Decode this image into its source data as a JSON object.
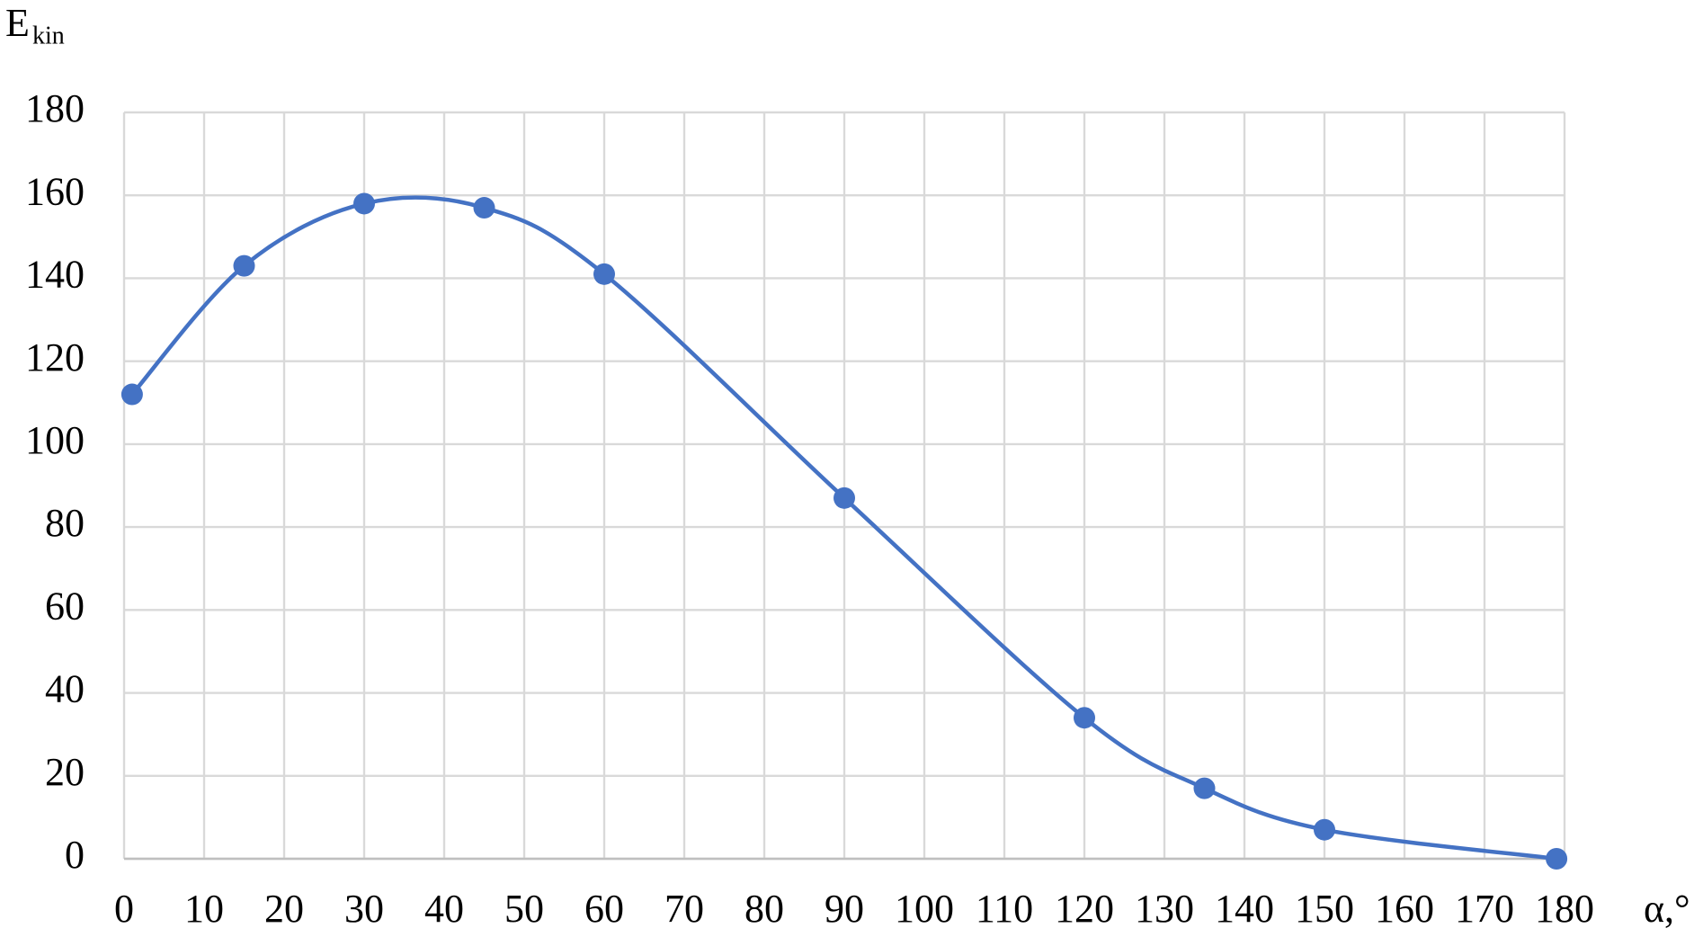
{
  "chart_data": {
    "type": "line",
    "ylabel": "E",
    "ylabel_sub": "kin",
    "xlabel": "α,°",
    "x": [
      1,
      15,
      30,
      45,
      60,
      90,
      120,
      135,
      150,
      179
    ],
    "series": [
      {
        "color": "#4472c4",
        "values": [
          112,
          143,
          158,
          157,
          141,
          87,
          34,
          17,
          7,
          0
        ]
      }
    ],
    "xlim": [
      0,
      180
    ],
    "xticks": [
      0,
      10,
      20,
      30,
      40,
      50,
      60,
      70,
      80,
      90,
      100,
      110,
      120,
      130,
      140,
      150,
      160,
      170,
      180
    ],
    "ylim": [
      0,
      180
    ],
    "yticks": [
      0,
      20,
      40,
      60,
      80,
      100,
      120,
      140,
      160,
      180
    ],
    "grid": true,
    "smooth": true,
    "markers": true
  }
}
